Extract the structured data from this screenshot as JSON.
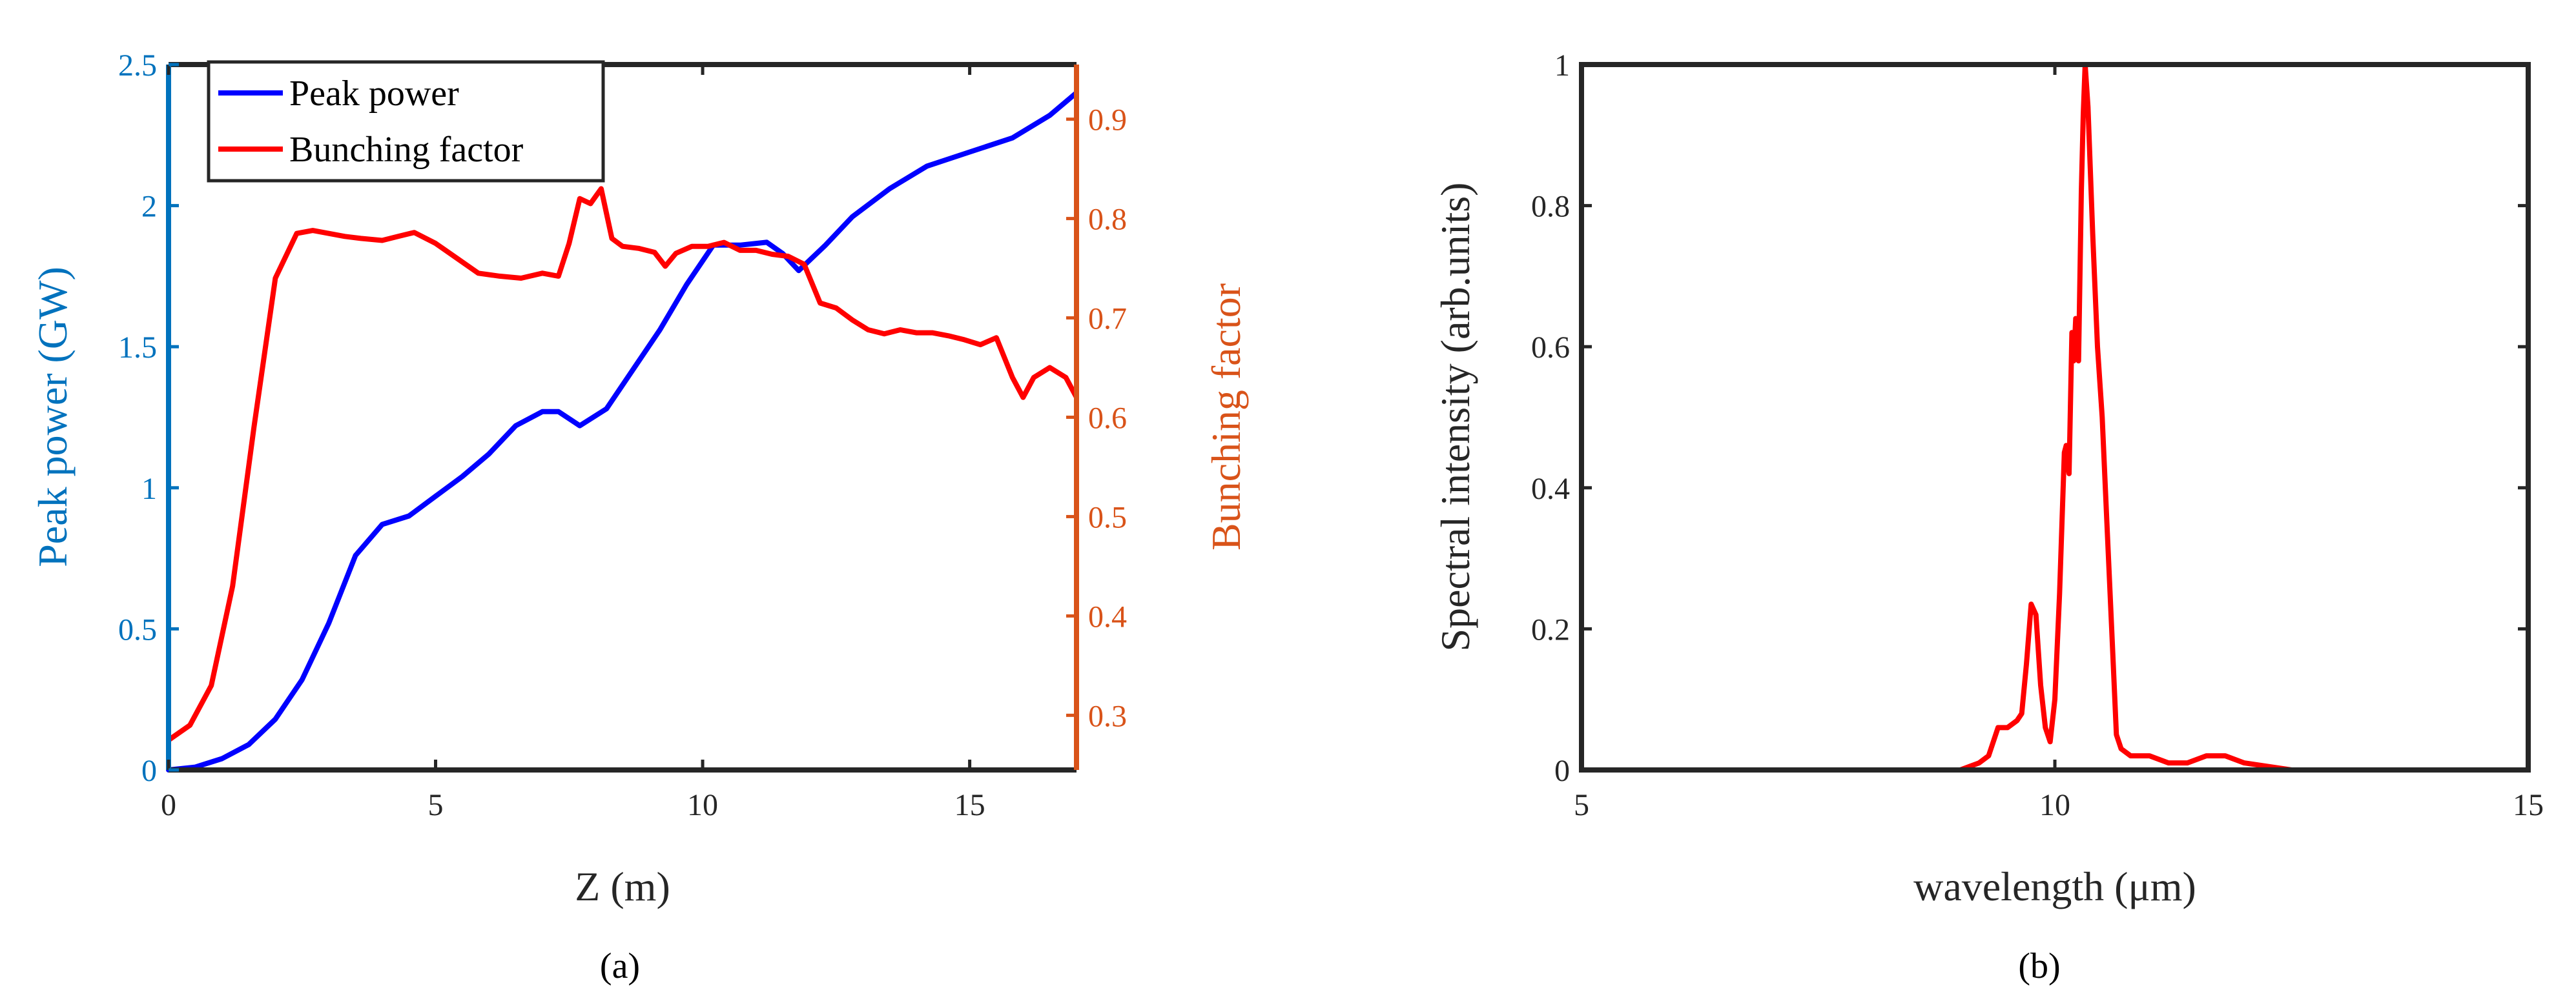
{
  "colors": {
    "peak": "#0000ff",
    "bunch": "#ff0000",
    "left_axis": "#0072bd",
    "right_axis": "#d95319",
    "spectrum": "#ff0000",
    "frame": "#262626"
  },
  "panel_a": {
    "caption": "(a)",
    "xlabel": "Z (m)",
    "ylabel_left": "Peak power (GW)",
    "ylabel_right": "Bunching factor",
    "xticks": [
      "0",
      "5",
      "10",
      "15"
    ],
    "yticks_left": [
      "0",
      "0.5",
      "1",
      "1.5",
      "2",
      "2.5"
    ],
    "yticks_right": [
      "0.3",
      "0.4",
      "0.5",
      "0.6",
      "0.7",
      "0.8",
      "0.9"
    ],
    "legend": [
      "Peak power",
      "Bunching factor"
    ]
  },
  "panel_b": {
    "caption": "(b)",
    "xlabel": "wavelength (μm)",
    "ylabel": "Spectral intensity (arb.units)",
    "xticks": [
      "5",
      "10",
      "15"
    ],
    "yticks": [
      "0",
      "0.2",
      "0.4",
      "0.6",
      "0.8",
      "1"
    ]
  },
  "chart_data": [
    {
      "type": "line",
      "xlabel": "Z (m)",
      "ylabel": "Peak power (GW)",
      "y2label": "Bunching factor",
      "xlim": [
        0,
        17
      ],
      "ylim": [
        0,
        2.5
      ],
      "y2lim": [
        0.245,
        0.955
      ],
      "grid": false,
      "legend_position": "top-left",
      "series": [
        {
          "name": "Peak power",
          "axis": "left",
          "x": [
            0,
            0.5,
            1,
            1.5,
            2,
            2.5,
            3,
            3.5,
            4,
            4.5,
            5,
            5.5,
            6,
            6.5,
            7,
            7.3,
            7.7,
            8.2,
            8.7,
            9.2,
            9.7,
            10.2,
            10.7,
            11.2,
            11.5,
            11.8,
            12.3,
            12.8,
            13.5,
            14.2,
            15,
            15.8,
            16.5,
            17
          ],
          "y": [
            0,
            0.01,
            0.04,
            0.09,
            0.18,
            0.32,
            0.52,
            0.76,
            0.87,
            0.9,
            0.97,
            1.04,
            1.12,
            1.22,
            1.27,
            1.27,
            1.22,
            1.28,
            1.42,
            1.56,
            1.72,
            1.86,
            1.86,
            1.87,
            1.83,
            1.77,
            1.86,
            1.96,
            2.06,
            2.14,
            2.19,
            2.24,
            2.32,
            2.4
          ]
        },
        {
          "name": "Bunching factor",
          "axis": "right",
          "x": [
            0,
            0.4,
            0.8,
            1.2,
            1.6,
            2.0,
            2.4,
            2.7,
            3.0,
            3.3,
            3.6,
            4.0,
            4.3,
            4.6,
            5.0,
            5.4,
            5.8,
            6.2,
            6.6,
            7.0,
            7.3,
            7.5,
            7.7,
            7.9,
            8.1,
            8.3,
            8.5,
            8.8,
            9.1,
            9.3,
            9.5,
            9.8,
            10.1,
            10.4,
            10.7,
            11.0,
            11.3,
            11.6,
            11.9,
            12.2,
            12.5,
            12.8,
            13.1,
            13.4,
            13.7,
            14.0,
            14.3,
            14.6,
            14.9,
            15.2,
            15.5,
            15.8,
            16.0,
            16.2,
            16.5,
            16.8,
            17.0
          ],
          "y": [
            0.275,
            0.29,
            0.33,
            0.43,
            0.59,
            0.74,
            0.785,
            0.788,
            0.785,
            0.782,
            0.78,
            0.778,
            0.782,
            0.786,
            0.775,
            0.76,
            0.745,
            0.742,
            0.74,
            0.745,
            0.742,
            0.775,
            0.82,
            0.815,
            0.83,
            0.78,
            0.772,
            0.77,
            0.766,
            0.752,
            0.765,
            0.772,
            0.772,
            0.776,
            0.768,
            0.768,
            0.764,
            0.762,
            0.754,
            0.715,
            0.71,
            0.698,
            0.688,
            0.684,
            0.688,
            0.685,
            0.685,
            0.682,
            0.678,
            0.673,
            0.68,
            0.64,
            0.62,
            0.64,
            0.65,
            0.64,
            0.62
          ]
        }
      ]
    },
    {
      "type": "line",
      "xlabel": "wavelength (μm)",
      "ylabel": "Spectral intensity (arb.units)",
      "xlim": [
        5,
        15
      ],
      "ylim": [
        0,
        1
      ],
      "grid": false,
      "series": [
        {
          "x": [
            6.7,
            8.5,
            9.0,
            9.1,
            9.2,
            9.3,
            9.4,
            9.5,
            9.6,
            9.65,
            9.7,
            9.75,
            9.8,
            9.85,
            9.9,
            9.95,
            10.0,
            10.05,
            10.1,
            10.12,
            10.15,
            10.18,
            10.2,
            10.22,
            10.25,
            10.28,
            10.3,
            10.32,
            10.35,
            10.4,
            10.45,
            10.5,
            10.55,
            10.6,
            10.65,
            10.7,
            10.8,
            11.0,
            11.2,
            11.4,
            11.6,
            11.8,
            12.0,
            12.5,
            13.0,
            15.0
          ],
          "y": [
            0.0,
            0.0,
            0.0,
            0.005,
            0.01,
            0.02,
            0.06,
            0.06,
            0.07,
            0.08,
            0.15,
            0.235,
            0.22,
            0.12,
            0.06,
            0.04,
            0.1,
            0.25,
            0.45,
            0.46,
            0.42,
            0.62,
            0.58,
            0.64,
            0.58,
            0.82,
            0.93,
            1.0,
            0.94,
            0.76,
            0.6,
            0.5,
            0.35,
            0.2,
            0.05,
            0.03,
            0.02,
            0.02,
            0.01,
            0.01,
            0.02,
            0.02,
            0.01,
            0.0,
            0.0,
            0.0
          ]
        }
      ]
    }
  ]
}
